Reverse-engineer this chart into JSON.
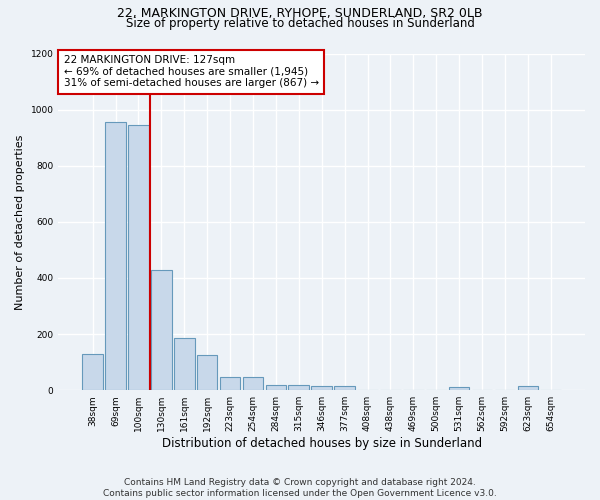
{
  "title1": "22, MARKINGTON DRIVE, RYHOPE, SUNDERLAND, SR2 0LB",
  "title2": "Size of property relative to detached houses in Sunderland",
  "xlabel": "Distribution of detached houses by size in Sunderland",
  "ylabel": "Number of detached properties",
  "categories": [
    "38sqm",
    "69sqm",
    "100sqm",
    "130sqm",
    "161sqm",
    "192sqm",
    "223sqm",
    "254sqm",
    "284sqm",
    "315sqm",
    "346sqm",
    "377sqm",
    "408sqm",
    "438sqm",
    "469sqm",
    "500sqm",
    "531sqm",
    "562sqm",
    "592sqm",
    "623sqm",
    "654sqm"
  ],
  "values": [
    130,
    955,
    945,
    430,
    185,
    125,
    48,
    48,
    20,
    20,
    15,
    15,
    0,
    0,
    0,
    0,
    12,
    0,
    0,
    15,
    0
  ],
  "bar_color": "#c8d8ea",
  "bar_edge_color": "#6699bb",
  "vline_x_index": 2.5,
  "property_sqm": 127,
  "annotation_text": "22 MARKINGTON DRIVE: 127sqm\n← 69% of detached houses are smaller (1,945)\n31% of semi-detached houses are larger (867) →",
  "annotation_box_color": "white",
  "annotation_box_edge_color": "#cc0000",
  "vline_color": "#cc0000",
  "ylim": [
    0,
    1200
  ],
  "yticks": [
    0,
    200,
    400,
    600,
    800,
    1000,
    1200
  ],
  "footer": "Contains HM Land Registry data © Crown copyright and database right 2024.\nContains public sector information licensed under the Open Government Licence v3.0.",
  "bg_color": "#edf2f7",
  "plot_bg_color": "#edf2f7",
  "title1_fontsize": 9,
  "title2_fontsize": 8.5,
  "ylabel_fontsize": 8,
  "xlabel_fontsize": 8.5,
  "tick_fontsize": 6.5,
  "footer_fontsize": 6.5,
  "ann_fontsize": 7.5
}
